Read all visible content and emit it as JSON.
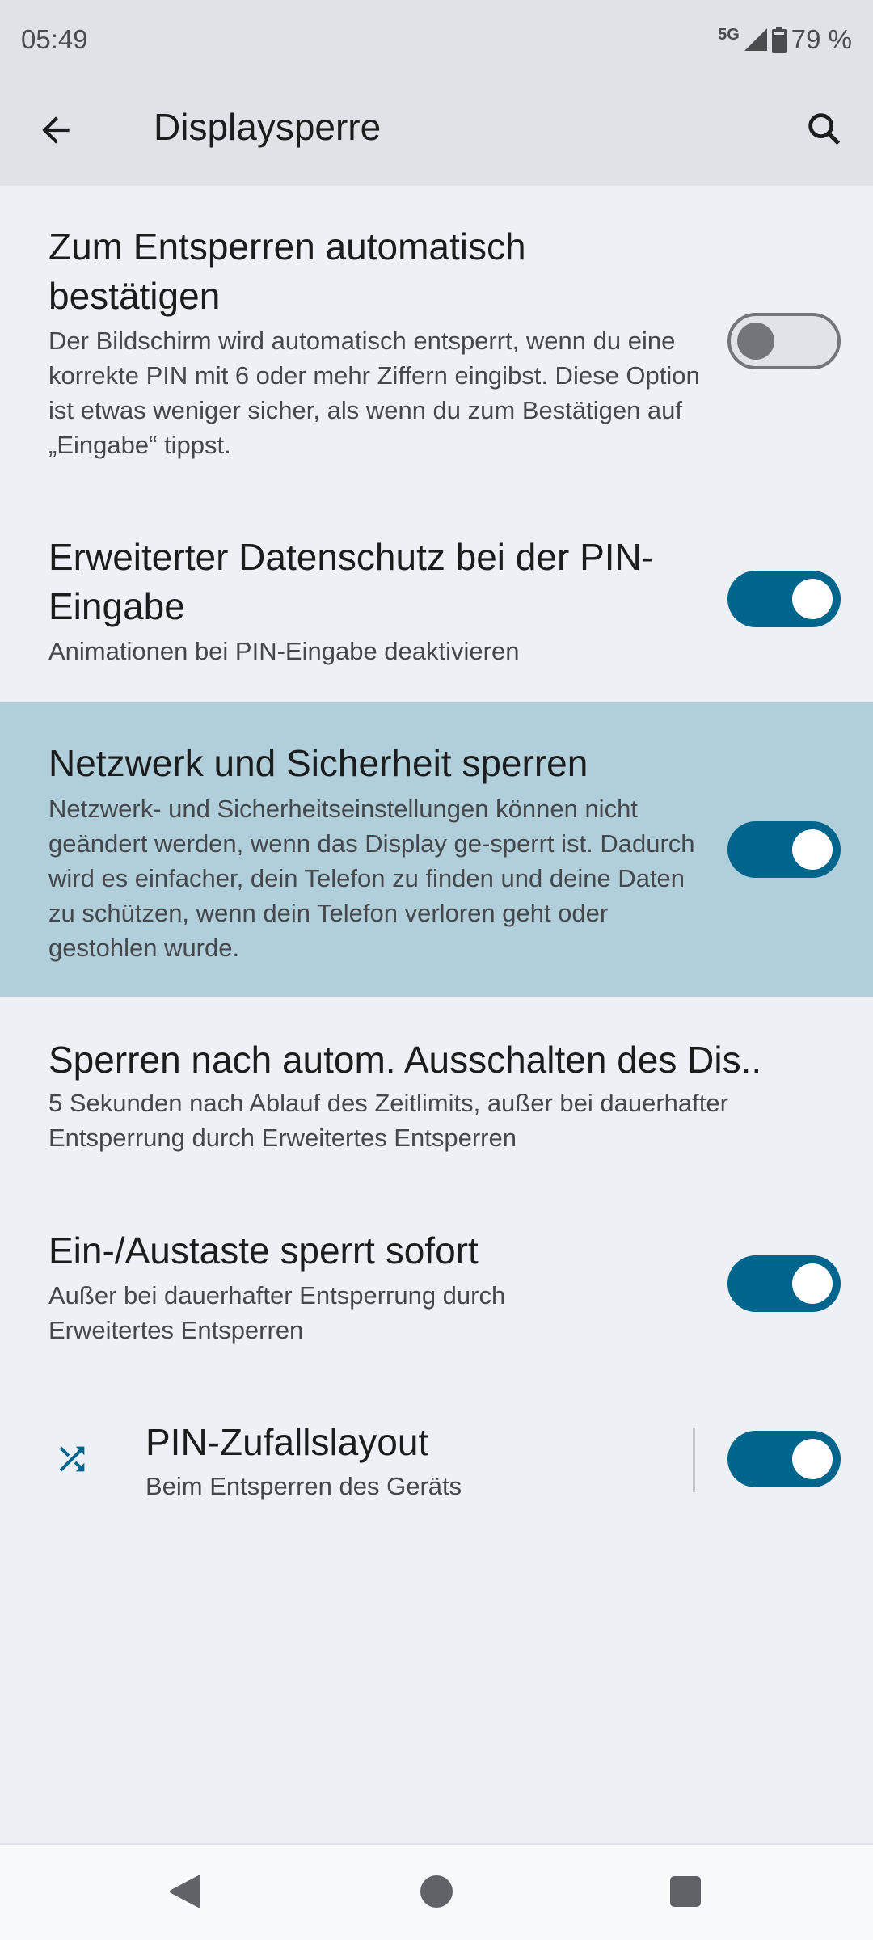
{
  "status_bar": {
    "time": "05:49",
    "network": "5G",
    "battery": "79 %"
  },
  "header": {
    "title": "Displaysperre",
    "back_icon": "arrow-back-icon",
    "search_icon": "search-icon"
  },
  "colors": {
    "accent": "#00658d",
    "highlight": "#b0cfdb",
    "background": "#edf0f5"
  },
  "settings": [
    {
      "title": "Zum Entsperren automatisch bestätigen",
      "summary": "Der Bildschirm wird automatisch entsperrt, wenn du eine korrekte PIN mit 6 oder mehr Ziffern eingibst. Diese Option ist etwas weniger sicher, als wenn du zum Bestätigen auf „Eingabe“ tippst.",
      "toggle": false
    },
    {
      "title": "Erweiterter Datenschutz bei der PIN-Eingabe",
      "summary": "Animationen bei PIN-Eingabe deaktivieren",
      "toggle": true
    },
    {
      "title": "Netzwerk und Sicherheit sperren",
      "summary": "Netzwerk- und Sicherheitseinstellungen können nicht geändert werden, wenn das Display ge-sperrt ist. Dadurch wird es einfacher, dein Telefon zu finden und deine Daten zu schützen, wenn dein Telefon verloren geht oder gestohlen wurde.",
      "toggle": true,
      "highlighted": true
    },
    {
      "title": "Sperren nach autom. Ausschalten des Dis..",
      "summary": "5 Sekunden nach Ablauf des Zeitlimits, außer bei dauerhafter Entsperrung durch Erweitertes Entsperren"
    },
    {
      "title": "Ein-/Austaste sperrt sofort",
      "summary": "Außer bei dauerhafter Entsperrung durch Erweitertes Entsperren",
      "toggle": true
    },
    {
      "title": "PIN-Zufallslayout",
      "summary": "Beim Entsperren des Geräts",
      "toggle": true,
      "icon": "shuffle-icon"
    }
  ]
}
